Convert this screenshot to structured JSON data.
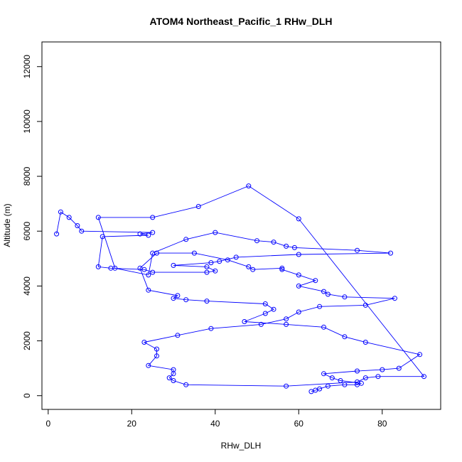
{
  "chart_data": {
    "type": "scatter",
    "title": "ATOM4 Northeast_Pacific_1 RHw_DLH",
    "xlabel": "RHw_DLH",
    "ylabel": "Altitude (m)",
    "xlim": [
      -1.5,
      94
    ],
    "ylim": [
      -500,
      12900
    ],
    "x_ticks": [
      0,
      20,
      40,
      60,
      80
    ],
    "x_tick_labels": [
      "0",
      "20",
      "40",
      "60",
      "80"
    ],
    "y_ticks": [
      0,
      2000,
      4000,
      6000,
      8000,
      10000,
      12000
    ],
    "y_tick_labels": [
      "0",
      "2000",
      "4000",
      "6000",
      "8000",
      "10000",
      "12000"
    ],
    "grid": false,
    "legend": "none",
    "series": [
      {
        "color": "#0000ff",
        "marker": "open-circle",
        "connected": true,
        "x": [
          63,
          64,
          65,
          67,
          71,
          74,
          75,
          70,
          68,
          66,
          74,
          80,
          84,
          89,
          76,
          71,
          66,
          57,
          47,
          52,
          54,
          52,
          38,
          33,
          30,
          31,
          24,
          22,
          26,
          35,
          43,
          48,
          49,
          56,
          56,
          60,
          64,
          60,
          66,
          67,
          71,
          83,
          76,
          65,
          60,
          57,
          51,
          39,
          31,
          23,
          26,
          26,
          24,
          30,
          30,
          29,
          30,
          33,
          57,
          74,
          76,
          79,
          90,
          60,
          48,
          36,
          25,
          12,
          16,
          24,
          25,
          33,
          40,
          50,
          54,
          57,
          59,
          74,
          82,
          60,
          45,
          41,
          39,
          30,
          38,
          40,
          38,
          25,
          23,
          15,
          12,
          13,
          24,
          22,
          25,
          8,
          7,
          5,
          3,
          2
        ],
        "y": [
          150,
          200,
          250,
          350,
          400,
          400,
          450,
          550,
          650,
          800,
          900,
          950,
          1000,
          1500,
          1950,
          2150,
          2500,
          2600,
          2700,
          3000,
          3150,
          3350,
          3450,
          3500,
          3550,
          3650,
          3850,
          4650,
          5200,
          5200,
          4950,
          4700,
          4600,
          4650,
          4600,
          4400,
          4200,
          4000,
          3800,
          3700,
          3600,
          3550,
          3300,
          3250,
          3050,
          2800,
          2600,
          2450,
          2200,
          1950,
          1700,
          1450,
          1100,
          950,
          800,
          650,
          550,
          400,
          350,
          500,
          650,
          700,
          700,
          6450,
          7650,
          6900,
          6500,
          6500,
          4650,
          4400,
          5200,
          5700,
          5950,
          5650,
          5600,
          5450,
          5400,
          5300,
          5200,
          5150,
          5050,
          4900,
          4850,
          4750,
          4700,
          4550,
          4500,
          4500,
          4600,
          4650,
          4700,
          5800,
          5850,
          5900,
          5950,
          6000,
          6200,
          6500,
          6700,
          5900
        ]
      }
    ]
  }
}
